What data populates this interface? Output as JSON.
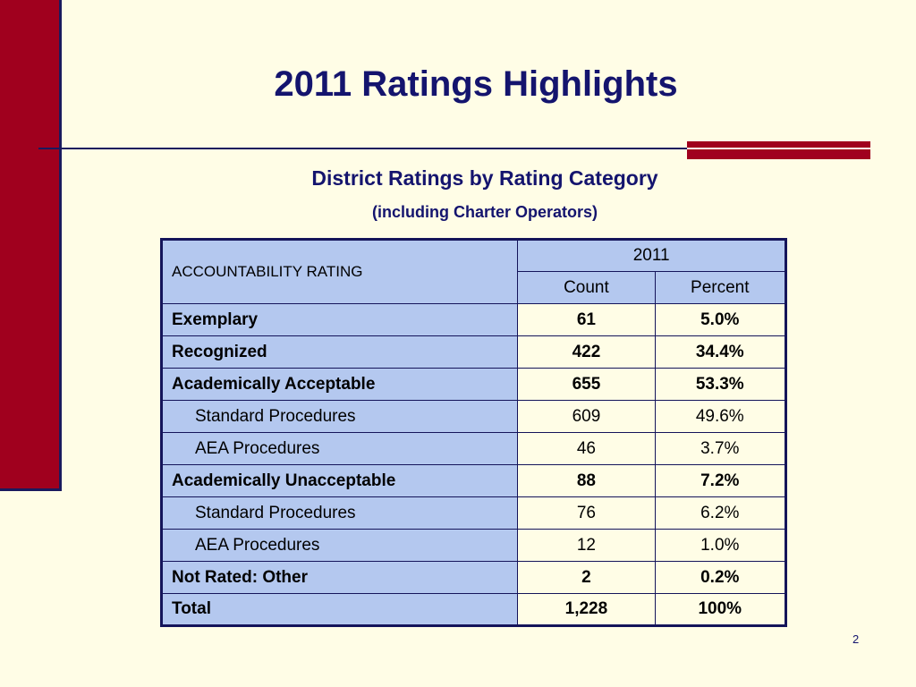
{
  "slide": {
    "title": "2011 Ratings Highlights",
    "subtitle": "District Ratings by Rating Category",
    "subtitle2": "(including Charter Operators)",
    "page_number": "2",
    "colors": {
      "background": "#fffde6",
      "accent_red": "#a0001e",
      "navy": "#14146e",
      "header_blue": "#b4c8ef"
    }
  },
  "table": {
    "rating_header": "ACCOUNTABILITY RATING",
    "year_header": "2011",
    "count_header": "Count",
    "percent_header": "Percent",
    "rows": [
      {
        "label": "Exemplary",
        "count": "61",
        "percent": "5.0%"
      },
      {
        "label": "Recognized",
        "count": "422",
        "percent": "34.4%"
      },
      {
        "label": "Academically Acceptable",
        "count": "655",
        "percent": "53.3%"
      },
      {
        "label": "Standard Procedures",
        "count": "609",
        "percent": "49.6%"
      },
      {
        "label": "AEA Procedures",
        "count": "46",
        "percent": "3.7%"
      },
      {
        "label": "Academically Unacceptable",
        "count": "88",
        "percent": "7.2%"
      },
      {
        "label": "Standard Procedures",
        "count": "76",
        "percent": "6.2%"
      },
      {
        "label": "AEA Procedures",
        "count": "12",
        "percent": "1.0%"
      },
      {
        "label": "Not Rated: Other",
        "count": "2",
        "percent": "0.2%"
      },
      {
        "label": "Total",
        "count": "1,228",
        "percent": "100%"
      }
    ]
  }
}
